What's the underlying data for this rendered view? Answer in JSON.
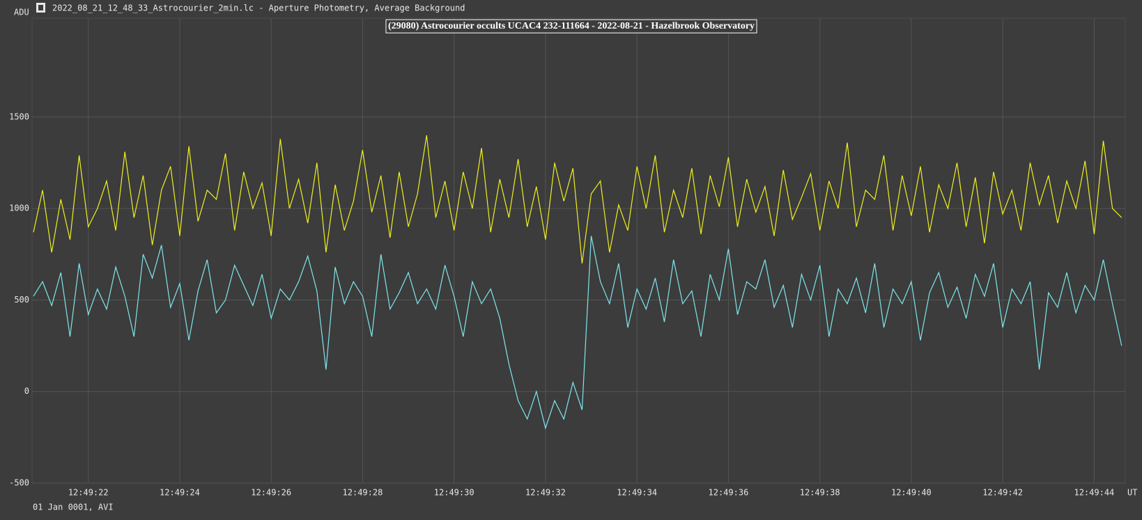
{
  "chart_data": {
    "type": "line",
    "window_title": "2022_08_21_12_48_33_Astrocourier_2min.lc - Aperture Photometry, Average Background",
    "title": "(29080) Astrocourier occults UCAC4 232-111664 - 2022-08-21 - Hazelbrook Observatory",
    "ylabel": "ADU",
    "xlabel": "UT",
    "footer": "01 Jan 0001, AVI",
    "x": [
      20.8,
      21.0,
      21.2,
      21.4,
      21.6,
      21.8,
      22.0,
      22.2,
      22.4,
      22.6,
      22.8,
      23.0,
      23.2,
      23.4,
      23.6,
      23.8,
      24.0,
      24.2,
      24.4,
      24.6,
      24.8,
      25.0,
      25.2,
      25.4,
      25.6,
      25.8,
      26.0,
      26.2,
      26.4,
      26.6,
      26.8,
      27.0,
      27.2,
      27.4,
      27.6,
      27.8,
      28.0,
      28.2,
      28.4,
      28.6,
      28.8,
      29.0,
      29.2,
      29.4,
      29.6,
      29.8,
      30.0,
      30.2,
      30.4,
      30.6,
      30.8,
      31.0,
      31.2,
      31.4,
      31.6,
      31.8,
      32.0,
      32.2,
      32.4,
      32.6,
      32.8,
      33.0,
      33.2,
      33.4,
      33.6,
      33.8,
      34.0,
      34.2,
      34.4,
      34.6,
      34.8,
      35.0,
      35.2,
      35.4,
      35.6,
      35.8,
      36.0,
      36.2,
      36.4,
      36.6,
      36.8,
      37.0,
      37.2,
      37.4,
      37.6,
      37.8,
      38.0,
      38.2,
      38.4,
      38.6,
      38.8,
      39.0,
      39.2,
      39.4,
      39.6,
      39.8,
      40.0,
      40.2,
      40.4,
      40.6,
      40.8,
      41.0,
      41.2,
      41.4,
      41.6,
      41.8,
      42.0,
      42.2,
      42.4,
      42.6,
      42.8,
      43.0,
      43.2,
      43.4,
      43.6,
      43.8,
      44.0,
      44.2,
      44.4,
      44.6
    ],
    "series": [
      {
        "color": "#f0f020",
        "values": [
          870,
          1100,
          760,
          1050,
          830,
          1290,
          900,
          1000,
          1150,
          880,
          1310,
          950,
          1180,
          800,
          1100,
          1230,
          850,
          1340,
          930,
          1100,
          1050,
          1300,
          880,
          1200,
          1000,
          1140,
          850,
          1380,
          1000,
          1160,
          920,
          1250,
          760,
          1130,
          880,
          1040,
          1320,
          980,
          1180,
          840,
          1200,
          900,
          1080,
          1400,
          950,
          1150,
          880,
          1200,
          1000,
          1330,
          870,
          1160,
          950,
          1270,
          900,
          1120,
          830,
          1250,
          1040,
          1220,
          700,
          1080,
          1150,
          760,
          1020,
          880,
          1230,
          1000,
          1290,
          870,
          1100,
          950,
          1220,
          860,
          1180,
          1010,
          1280,
          900,
          1160,
          980,
          1120,
          850,
          1210,
          940,
          1060,
          1190,
          880,
          1150,
          1000,
          1360,
          900,
          1100,
          1050,
          1290,
          880,
          1180,
          960,
          1230,
          870,
          1130,
          1000,
          1250,
          900,
          1170,
          810,
          1200,
          970,
          1100,
          880,
          1250,
          1020,
          1180,
          920,
          1150,
          1000,
          1260,
          860,
          1370,
          1000,
          950
        ]
      },
      {
        "color": "#7fe8ee",
        "values": [
          520,
          600,
          470,
          650,
          300,
          700,
          420,
          560,
          450,
          680,
          520,
          300,
          750,
          620,
          800,
          460,
          590,
          280,
          550,
          720,
          430,
          500,
          690,
          580,
          470,
          640,
          400,
          560,
          500,
          600,
          740,
          550,
          120,
          680,
          480,
          600,
          520,
          300,
          750,
          450,
          540,
          650,
          480,
          560,
          450,
          690,
          520,
          300,
          600,
          480,
          560,
          400,
          150,
          -50,
          -150,
          0,
          -200,
          -50,
          -150,
          50,
          -100,
          850,
          600,
          480,
          700,
          350,
          560,
          450,
          620,
          380,
          720,
          480,
          550,
          300,
          640,
          500,
          780,
          420,
          600,
          560,
          720,
          460,
          580,
          350,
          640,
          500,
          690,
          300,
          560,
          480,
          620,
          430,
          700,
          350,
          560,
          480,
          600,
          280,
          540,
          650,
          460,
          570,
          400,
          640,
          520,
          700,
          350,
          560,
          480,
          600,
          120,
          540,
          460,
          650,
          430,
          580,
          500,
          720,
          480,
          250
        ]
      }
    ],
    "xlim": [
      20.77,
      44.68
    ],
    "ylim": [
      -500,
      2040
    ],
    "xticks": [
      {
        "value": 22,
        "label": "12:49:22"
      },
      {
        "value": 24,
        "label": "12:49:24"
      },
      {
        "value": 26,
        "label": "12:49:26"
      },
      {
        "value": 28,
        "label": "12:49:28"
      },
      {
        "value": 30,
        "label": "12:49:30"
      },
      {
        "value": 32,
        "label": "12:49:32"
      },
      {
        "value": 34,
        "label": "12:49:34"
      },
      {
        "value": 36,
        "label": "12:49:36"
      },
      {
        "value": 38,
        "label": "12:49:38"
      },
      {
        "value": 40,
        "label": "12:49:40"
      },
      {
        "value": 42,
        "label": "12:49:42"
      },
      {
        "value": 44,
        "label": "12:49:44"
      }
    ],
    "yticks": [
      -500,
      0,
      500,
      1000,
      1500
    ],
    "grid": true
  }
}
